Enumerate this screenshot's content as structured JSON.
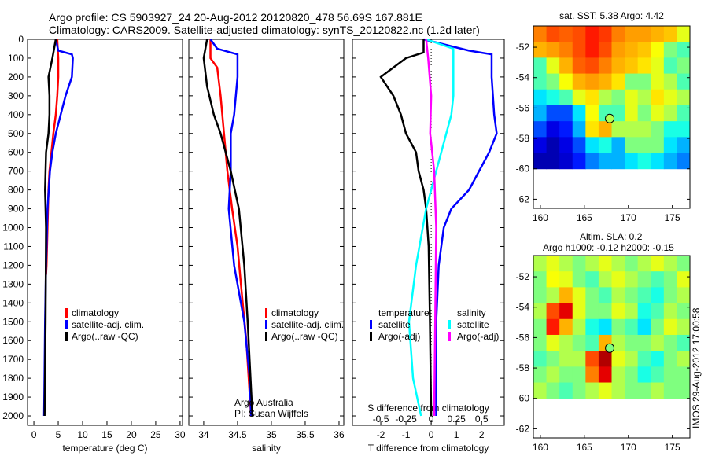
{
  "title_line1": "Argo profile: CS 5903927_24 20-Aug-2012 20120820_478 56.69S 167.881E",
  "title_line2": "Climatology: CARS2009. Satellite-adjusted climatology: synTS_20120822.nc (1.2d later)",
  "side_label": "IMOS 29-Aug-2012 17:00:58",
  "colors": {
    "climatology": "#ff0000",
    "satellite": "#0000ff",
    "argo": "#000000",
    "sat_s": "#00ffff",
    "argo_s": "#ff00ff"
  },
  "chart_data": [
    {
      "type": "line",
      "name": "temperature",
      "xlabel": "temperature (deg C)",
      "ylabel": "depth",
      "xlim": [
        -1.3,
        30.5
      ],
      "ylim": [
        0,
        2050
      ],
      "xticks": [
        0,
        5,
        10,
        15,
        20,
        25,
        30
      ],
      "yticks": [
        0,
        100,
        200,
        300,
        400,
        500,
        600,
        700,
        800,
        900,
        1000,
        1100,
        1200,
        1300,
        1400,
        1500,
        1600,
        1700,
        1800,
        1900,
        2000
      ],
      "legend": [
        "climatology",
        "satellite-adj. clim.",
        "Argo(..raw -QC)"
      ],
      "series": [
        {
          "name": "climatology",
          "color": "#ff0000",
          "depth": [
            0,
            100,
            200,
            300,
            400,
            500,
            600,
            700,
            800,
            1000,
            1200,
            1250
          ],
          "values": [
            4.8,
            5,
            5,
            4.8,
            4.5,
            4,
            3.6,
            3.2,
            3,
            2.8,
            2.6,
            2.5
          ]
        },
        {
          "name": "satellite-adj. clim.",
          "color": "#0000ff",
          "depth": [
            0,
            60,
            80,
            100,
            200,
            300,
            400,
            500,
            600,
            700,
            900,
            1200,
            1500,
            2000
          ],
          "values": [
            4.5,
            5,
            7.8,
            8,
            7.8,
            6.5,
            5.5,
            4.5,
            3.8,
            3.3,
            2.8,
            2.5,
            2.3,
            2.1
          ]
        },
        {
          "name": "Argo(..raw -QC)",
          "color": "#000000",
          "depth": [
            0,
            100,
            200,
            300,
            400,
            500,
            600,
            800,
            1000,
            1500,
            2000
          ],
          "values": [
            4.5,
            3.8,
            3,
            3.2,
            3.2,
            3,
            2.5,
            2.3,
            2.5,
            2.4,
            2.2
          ]
        }
      ]
    },
    {
      "type": "line",
      "name": "salinity",
      "xlabel": "salinity",
      "xlim": [
        33.78,
        36.07
      ],
      "ylim": [
        0,
        2050
      ],
      "xticks": [
        34,
        34.5,
        35,
        35.5,
        36
      ],
      "legend": [
        "climatology",
        "satellite-adj. clim.",
        "Argo(..raw -QC)"
      ],
      "annotation": [
        "Argo Australia",
        "PI: Susan Wijffels"
      ],
      "series": [
        {
          "name": "climatology",
          "color": "#ff0000",
          "depth": [
            0,
            100,
            150,
            300,
            500,
            700,
            900,
            1100,
            1300,
            1600,
            2000
          ],
          "values": [
            34.1,
            34.1,
            34.2,
            34.25,
            34.3,
            34.35,
            34.42,
            34.5,
            34.55,
            34.63,
            34.7
          ]
        },
        {
          "name": "satellite-adj. clim.",
          "color": "#0000ff",
          "depth": [
            0,
            50,
            80,
            200,
            400,
            500,
            700,
            900,
            1200,
            1500,
            1800,
            2000
          ],
          "values": [
            34.1,
            34.2,
            34.5,
            34.5,
            34.45,
            34.4,
            34.4,
            34.37,
            34.45,
            34.6,
            34.68,
            34.7
          ]
        },
        {
          "name": "Argo(..raw -QC)",
          "color": "#000000",
          "depth": [
            0,
            100,
            250,
            400,
            500,
            700,
            900,
            1200,
            1500,
            2000
          ],
          "values": [
            34.05,
            34.0,
            34.05,
            34.15,
            34.25,
            34.4,
            34.52,
            34.6,
            34.65,
            34.72
          ]
        }
      ]
    },
    {
      "type": "line",
      "name": "difference",
      "xlabel": "T difference from climatology",
      "x2label": "S difference from climatology",
      "xlim": [
        -3.125,
        2.9
      ],
      "ylim": [
        0,
        2050
      ],
      "xticks": [
        -2,
        -1,
        0,
        1,
        2
      ],
      "x2ticks": [
        -0.5,
        -0.25,
        0,
        0.25,
        0.5
      ],
      "legend_titles": [
        "temperature",
        "salinity"
      ],
      "legend": [
        "satellite",
        "Argo(-adj)",
        "satellite",
        "Argo(-adj)"
      ],
      "series": [
        {
          "name": "T satellite",
          "color": "#0000ff",
          "axis": "T",
          "depth": [
            0,
            60,
            80,
            200,
            400,
            500,
            600,
            800,
            900,
            1000,
            1200,
            1500,
            2000
          ],
          "values": [
            -0.3,
            1.5,
            2.4,
            2.4,
            2.5,
            2.6,
            2.3,
            1.5,
            0.8,
            0.5,
            0.3,
            0.2,
            0.2
          ]
        },
        {
          "name": "T Argo(-adj)",
          "color": "#000000",
          "axis": "T",
          "depth": [
            0,
            70,
            100,
            200,
            300,
            400,
            500,
            600,
            700,
            800,
            900,
            1100,
            1500,
            2000
          ],
          "values": [
            -0.3,
            -0.3,
            -1,
            -2,
            -1.5,
            -1.2,
            -1,
            -0.6,
            -0.5,
            -0.3,
            -0.2,
            -0.1,
            -0.05,
            0
          ]
        },
        {
          "name": "S satellite",
          "color": "#00ffff",
          "axis": "S",
          "depth": [
            0,
            50,
            100,
            300,
            400,
            500,
            600,
            700,
            900,
            1200,
            1500,
            1800,
            2000
          ],
          "values": [
            -0.05,
            0.22,
            0.22,
            0.22,
            0.2,
            0.15,
            0.1,
            0.05,
            -0.05,
            -0.15,
            -0.22,
            -0.18,
            -0.1
          ]
        },
        {
          "name": "S Argo(-adj)",
          "color": "#ff00ff",
          "axis": "S",
          "depth": [
            0,
            100,
            300,
            500,
            700,
            1000,
            1500,
            2000
          ],
          "values": [
            -0.05,
            -0.03,
            0,
            -0.01,
            0.03,
            0.05,
            0.04,
            0.03
          ]
        }
      ]
    },
    {
      "type": "heatmap",
      "name": "sst-map",
      "title": "sat. SST: 5.38 Argo: 4.42",
      "xlim": [
        159.2,
        177
      ],
      "ylim": [
        -62.6,
        -50.6
      ],
      "data_lat_min": -60,
      "xticks": [
        160,
        165,
        170,
        175
      ],
      "yticks": [
        -52,
        -54,
        -56,
        -58,
        -60,
        -62
      ],
      "marker": [
        167.881,
        -56.69
      ],
      "marker_value": 0.55,
      "values": [
        [
          0.75,
          0.8,
          0.78,
          0.8,
          0.85,
          0.82,
          0.75,
          0.72,
          0.72,
          0.7,
          0.68,
          0.6
        ],
        [
          0.7,
          0.72,
          0.75,
          0.8,
          0.85,
          0.8,
          0.72,
          0.7,
          0.68,
          0.62,
          0.5,
          0.45
        ],
        [
          0.45,
          0.6,
          0.7,
          0.78,
          0.8,
          0.75,
          0.7,
          0.68,
          0.65,
          0.6,
          0.45,
          0.5
        ],
        [
          0.45,
          0.5,
          0.62,
          0.7,
          0.72,
          0.7,
          0.65,
          0.5,
          0.5,
          0.6,
          0.55,
          0.45
        ],
        [
          0.35,
          0.4,
          0.45,
          0.6,
          0.65,
          0.55,
          0.5,
          0.6,
          0.55,
          0.65,
          0.6,
          0.55
        ],
        [
          0.3,
          0.2,
          0.2,
          0.35,
          0.62,
          0.45,
          0.45,
          0.6,
          0.5,
          0.6,
          0.55,
          0.45
        ],
        [
          0.2,
          0.1,
          0.15,
          0.3,
          0.65,
          0.7,
          0.55,
          0.55,
          0.55,
          0.5,
          0.4,
          0.4
        ],
        [
          0.1,
          0.05,
          0.1,
          0.2,
          0.35,
          0.4,
          0.3,
          0.5,
          0.5,
          0.5,
          0.35,
          0.3
        ],
        [
          0.05,
          0.05,
          0.08,
          0.15,
          0.25,
          0.3,
          0.3,
          0.35,
          0.4,
          0.35,
          0.3,
          0.25
        ]
      ]
    },
    {
      "type": "heatmap",
      "name": "sla-map",
      "title": "Altim. SLA: 0.2",
      "subtitle": "Argo h1000: -0.12 h2000: -0.15",
      "xlim": [
        159.2,
        177
      ],
      "ylim": [
        -62.6,
        -50.6
      ],
      "data_lat_min": -60,
      "xticks": [
        160,
        165,
        170,
        175
      ],
      "yticks": [
        -52,
        -54,
        -56,
        -58,
        -60,
        -62
      ],
      "marker": [
        167.881,
        -56.69
      ],
      "marker_value": 0.5,
      "values": [
        [
          0.55,
          0.6,
          0.55,
          0.5,
          0.55,
          0.6,
          0.55,
          0.5,
          0.55,
          0.6,
          0.55,
          0.5
        ],
        [
          0.5,
          0.62,
          0.6,
          0.5,
          0.45,
          0.55,
          0.6,
          0.55,
          0.5,
          0.45,
          0.5,
          0.6
        ],
        [
          0.5,
          0.55,
          0.7,
          0.6,
          0.5,
          0.45,
          0.55,
          0.5,
          0.45,
          0.4,
          0.5,
          0.55
        ],
        [
          0.55,
          0.8,
          0.9,
          0.6,
          0.5,
          0.5,
          0.6,
          0.55,
          0.4,
          0.45,
          0.55,
          0.5
        ],
        [
          0.5,
          0.85,
          0.7,
          0.55,
          0.4,
          0.35,
          0.5,
          0.45,
          0.35,
          0.5,
          0.6,
          0.55
        ],
        [
          0.5,
          0.6,
          0.55,
          0.5,
          0.45,
          0.7,
          0.55,
          0.5,
          0.5,
          0.55,
          0.5,
          0.45
        ],
        [
          0.45,
          0.5,
          0.55,
          0.55,
          0.8,
          0.95,
          0.6,
          0.55,
          0.45,
          0.4,
          0.5,
          0.55
        ],
        [
          0.5,
          0.55,
          0.5,
          0.5,
          0.75,
          0.9,
          0.55,
          0.5,
          0.4,
          0.45,
          0.5,
          0.5
        ],
        [
          0.55,
          0.5,
          0.45,
          0.5,
          0.55,
          0.6,
          0.55,
          0.5,
          0.5,
          0.55,
          0.5,
          0.5
        ]
      ]
    }
  ]
}
